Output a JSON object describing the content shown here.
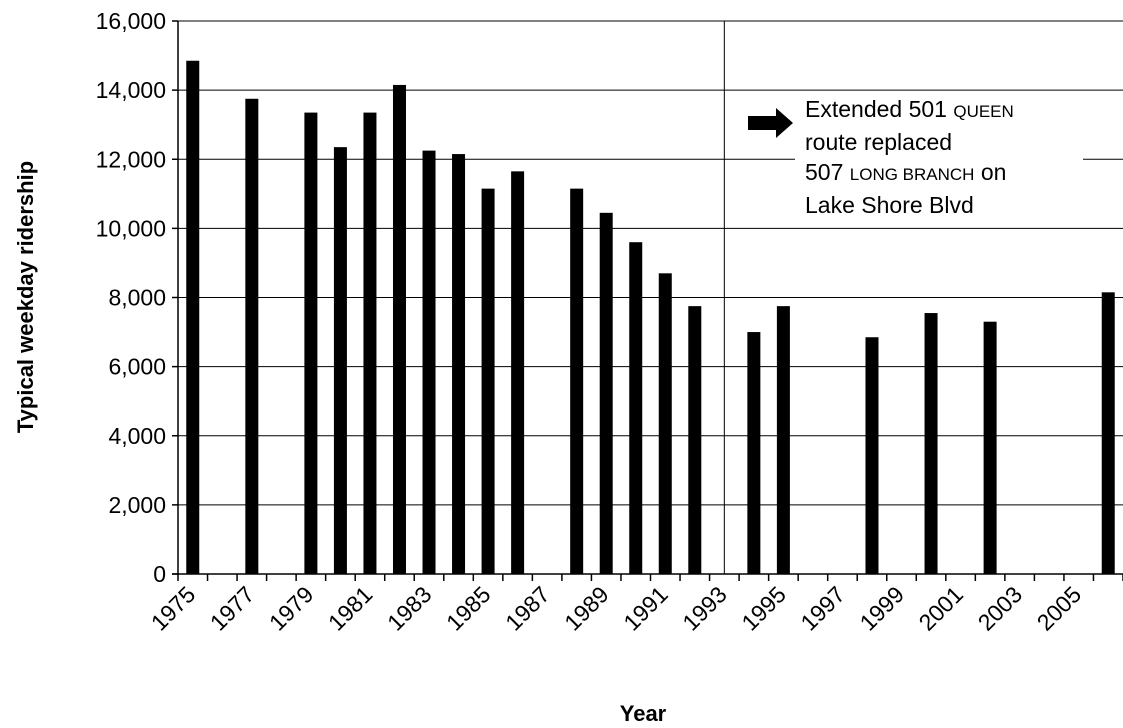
{
  "chart_data": {
    "type": "bar",
    "xlabel": "Year",
    "ylabel": "Typical weekday ridership",
    "ylim": [
      0,
      16000
    ],
    "yticks": [
      "0",
      "2,000",
      "4,000",
      "6,000",
      "8,000",
      "10,000",
      "12,000",
      "14,000",
      "16,000"
    ],
    "xlim": [
      1975,
      2007
    ],
    "xtick_labels": [
      "1975",
      "1977",
      "1979",
      "1981",
      "1983",
      "1985",
      "1987",
      "1989",
      "1991",
      "1993",
      "1995",
      "1997",
      "1999",
      "2001",
      "2003",
      "2005"
    ],
    "grid": "horizontal",
    "bar_color": "#000000",
    "data": [
      {
        "x": 1975,
        "y": 14850
      },
      {
        "x": 1977,
        "y": 13750
      },
      {
        "x": 1979,
        "y": 13350
      },
      {
        "x": 1980,
        "y": 12350
      },
      {
        "x": 1981,
        "y": 13350
      },
      {
        "x": 1982,
        "y": 14150
      },
      {
        "x": 1983,
        "y": 12250
      },
      {
        "x": 1984,
        "y": 12150
      },
      {
        "x": 1985,
        "y": 11150
      },
      {
        "x": 1986,
        "y": 11650
      },
      {
        "x": 1988,
        "y": 11150
      },
      {
        "x": 1989,
        "y": 10450
      },
      {
        "x": 1990,
        "y": 9600
      },
      {
        "x": 1991,
        "y": 8700
      },
      {
        "x": 1992,
        "y": 7750
      },
      {
        "x": 1994,
        "y": 7000
      },
      {
        "x": 1995,
        "y": 7750
      },
      {
        "x": 1998,
        "y": 6850
      },
      {
        "x": 2000,
        "y": 7550
      },
      {
        "x": 2002,
        "y": 7300
      },
      {
        "x": 2006,
        "y": 8150
      }
    ],
    "event_line_x": 1993.5,
    "annotation": {
      "line1_plain": "Extended 501 ",
      "line1_sc": "Queen",
      "line2": "route replaced",
      "line3_plain": "507 ",
      "line3_sc": "Long Branch",
      "line3_tail": " on",
      "line4": "Lake Shore Blvd"
    }
  }
}
